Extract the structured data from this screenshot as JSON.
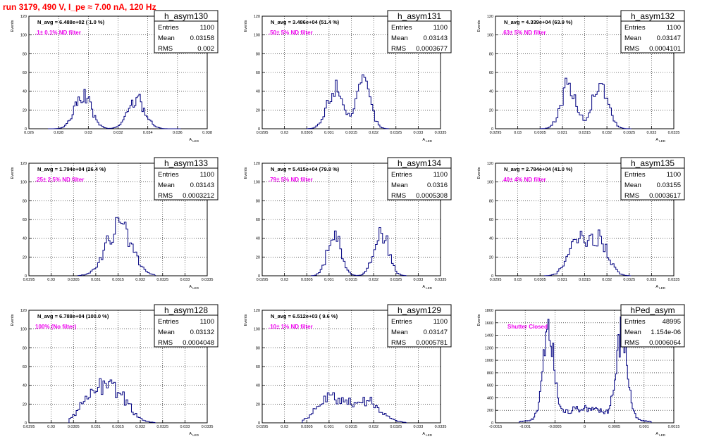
{
  "header": {
    "run_label": "run 3179,   490 V, I_pe ≈ 7.00 nA, 120 Hz"
  },
  "colors": {
    "histogram": "#000080",
    "filter_label": "#ee00ee",
    "title": "#ff0000",
    "grid": "#000000"
  },
  "chart_data": [
    {
      "type": "histogram",
      "name": "h_asym130",
      "entries": "1100",
      "mean": "0.03158",
      "rms": "0.002",
      "navg": "N_avg = 6.488e+02 ( 1.0 %)",
      "filter": ".1± 0.1% ND filter",
      "ylabel": "Events",
      "xlabel": "A_LED",
      "xlim": [
        0.026,
        0.038
      ],
      "ylim": [
        0,
        120
      ],
      "xticks": [
        "0.026",
        "0.028",
        "0.03",
        "0.032",
        "0.034",
        "0.036",
        "0.038"
      ],
      "yticks": [
        "0",
        "20",
        "40",
        "60",
        "80",
        "100",
        "120"
      ],
      "dist": {
        "peaks": [
          [
            0.0296,
            0.00055,
            37
          ],
          [
            0.0332,
            0.00058,
            32
          ]
        ],
        "lo": 0.0273,
        "hi": 0.0361,
        "bin": 0.0001
      }
    },
    {
      "type": "histogram",
      "name": "h_asym131",
      "entries": "1100",
      "mean": "0.03143",
      "rms": "0.0003677",
      "navg": "N_avg = 3.486e+04 (51.4 %)",
      "filter": ".50± 5% ND filter",
      "ylabel": "Events",
      "xlabel": "A_LED",
      "xlim": [
        0.0295,
        0.0335
      ],
      "ylim": [
        0,
        120
      ],
      "xticks": [
        "0.0295",
        "0.03",
        "0.0305",
        "0.031",
        "0.0315",
        "0.032",
        "0.0325",
        "0.033",
        "0.0335"
      ],
      "yticks": [
        "0",
        "20",
        "40",
        "60",
        "80",
        "100",
        "120"
      ],
      "dist": {
        "peaks": [
          [
            0.03113,
            0.00018,
            46
          ],
          [
            0.03176,
            0.00015,
            50
          ]
        ],
        "lo": 0.0305,
        "hi": 0.0323,
        "bin": 4e-05
      }
    },
    {
      "type": "histogram",
      "name": "h_asym132",
      "entries": "1100",
      "mean": "0.03147",
      "rms": "0.0004101",
      "navg": "N_avg = 4.339e+04 (63.9 %)",
      "filter": ".63± 5% ND filter",
      "ylabel": "Events",
      "xlabel": "A_LED",
      "xlim": [
        0.0295,
        0.0335
      ],
      "ylim": [
        0,
        120
      ],
      "xticks": [
        "0.0295",
        "0.03",
        "0.0305",
        "0.031",
        "0.0315",
        "0.032",
        "0.0325",
        "0.033",
        "0.0335"
      ],
      "yticks": [
        "0",
        "20",
        "40",
        "60",
        "80",
        "100",
        "120"
      ],
      "dist": {
        "peaks": [
          [
            0.03112,
            0.00017,
            47
          ],
          [
            0.03183,
            0.00017,
            50
          ]
        ],
        "lo": 0.0305,
        "hi": 0.0325,
        "bin": 4e-05
      }
    },
    {
      "type": "histogram",
      "name": "h_asym133",
      "entries": "1100",
      "mean": "0.03143",
      "rms": "0.0003212",
      "navg": "N_avg = 1.794e+04 (26.4 %)",
      "filter": ".25± 2.5% ND filter",
      "ylabel": "Events",
      "xlabel": "A_LED",
      "xlim": [
        0.0295,
        0.0335
      ],
      "ylim": [
        0,
        120
      ],
      "xticks": [
        "0.0295",
        "0.03",
        "0.0305",
        "0.031",
        "0.0315",
        "0.032",
        "0.0325",
        "0.033",
        "0.0335"
      ],
      "yticks": [
        "0",
        "20",
        "40",
        "60",
        "80",
        "100",
        "120"
      ],
      "dist": {
        "peaks": [
          [
            0.0315,
            0.00028,
            55
          ]
        ],
        "lo": 0.0306,
        "hi": 0.0323,
        "bin": 4e-05
      }
    },
    {
      "type": "histogram",
      "name": "h_asym134",
      "entries": "1100",
      "mean": "0.0316",
      "rms": "0.0005308",
      "navg": "N_avg = 5.415e+04 (79.8 %)",
      "filter": ".79± 5% ND filter",
      "ylabel": "Events",
      "xlabel": "A_LED",
      "xlim": [
        0.0295,
        0.0335
      ],
      "ylim": [
        0,
        120
      ],
      "xticks": [
        "0.0295",
        "0.03",
        "0.0305",
        "0.031",
        "0.0315",
        "0.032",
        "0.0325",
        "0.033",
        "0.0335"
      ],
      "yticks": [
        "0",
        "20",
        "40",
        "60",
        "80",
        "100",
        "120"
      ],
      "dist": {
        "peaks": [
          [
            0.0311,
            0.00015,
            47
          ],
          [
            0.03215,
            0.00016,
            50
          ]
        ],
        "lo": 0.0306,
        "hi": 0.0327,
        "bin": 4e-05
      }
    },
    {
      "type": "histogram",
      "name": "h_asym135",
      "entries": "1100",
      "mean": "0.03155",
      "rms": "0.0003617",
      "navg": "N_avg = 2.784e+04 (41.0 %)",
      "filter": ".40± 4% ND filter",
      "ylabel": "Events",
      "xlabel": "A_LED",
      "xlim": [
        0.0295,
        0.0335
      ],
      "ylim": [
        0,
        120
      ],
      "xticks": [
        "0.0295",
        "0.03",
        "0.0305",
        "0.031",
        "0.0315",
        "0.032",
        "0.0325",
        "0.033",
        "0.0335"
      ],
      "yticks": [
        "0",
        "20",
        "40",
        "60",
        "80",
        "100",
        "120"
      ],
      "dist": {
        "peaks": [
          [
            0.0313,
            0.0002,
            38
          ],
          [
            0.0318,
            0.0002,
            42
          ]
        ],
        "lo": 0.0306,
        "hi": 0.0325,
        "bin": 4e-05
      }
    },
    {
      "type": "histogram",
      "name": "h_asym128",
      "entries": "1100",
      "mean": "0.03132",
      "rms": "0.0004048",
      "navg": "N_avg = 6.788e+04 (100.0 %)",
      "filter": "100% (No filter)",
      "ylabel": "Events",
      "xlabel": "A_LED",
      "xlim": [
        0.0295,
        0.0335
      ],
      "ylim": [
        0,
        120
      ],
      "xticks": [
        "0.0295",
        "0.03",
        "0.0305",
        "0.031",
        "0.0315",
        "0.032",
        "0.0325",
        "0.033",
        "0.0335"
      ],
      "yticks": [
        "0",
        "20",
        "40",
        "60",
        "80",
        "100",
        "120"
      ],
      "dist": {
        "peaks": [
          [
            0.0309,
            0.00025,
            28
          ],
          [
            0.0314,
            0.0003,
            34
          ]
        ],
        "lo": 0.0304,
        "hi": 0.0323,
        "bin": 4e-05
      }
    },
    {
      "type": "histogram",
      "name": "h_asym129",
      "entries": "1100",
      "mean": "0.03147",
      "rms": "0.0005781",
      "navg": "N_avg = 6.512e+03 ( 9.6 %)",
      "filter": ".10± 1% ND filter",
      "ylabel": "Events",
      "xlabel": "A_LED",
      "xlim": [
        0.0295,
        0.0335
      ],
      "ylim": [
        0,
        120
      ],
      "xticks": [
        "0.0295",
        "0.03",
        "0.0305",
        "0.031",
        "0.0315",
        "0.032",
        "0.0325",
        "0.033",
        "0.0335"
      ],
      "yticks": [
        "0",
        "20",
        "40",
        "60",
        "80",
        "100",
        "120"
      ],
      "dist": {
        "peaks": [
          [
            0.031,
            0.0003,
            26
          ],
          [
            0.0318,
            0.00032,
            24
          ]
        ],
        "lo": 0.0304,
        "hi": 0.0327,
        "bin": 4e-05
      }
    },
    {
      "type": "histogram",
      "name": "hPed_asym",
      "entries": "48995",
      "mean": "1.154e-06",
      "rms": "0.0006064",
      "navg": "",
      "filter": "Shutter Closed",
      "ylabel": "Events",
      "xlabel": "A_LED",
      "xlim": [
        -0.0015,
        0.0015
      ],
      "ylim": [
        0,
        1800
      ],
      "xticks": [
        "-0.0015",
        "-0.001",
        "-0.0005",
        "0",
        "0.0005",
        "0.001",
        "0.0015"
      ],
      "yticks": [
        "0",
        "200",
        "400",
        "600",
        "800",
        "1000",
        "1200",
        "1400",
        "1600",
        "1800"
      ],
      "dist": {
        "peaks": [
          [
            -0.00062,
            9e-05,
            1450
          ],
          [
            0.00062,
            9e-05,
            1450
          ]
        ],
        "floor": 230,
        "floorW": 0.0005,
        "lo": -0.0011,
        "hi": 0.0011,
        "bin": 2e-05
      }
    }
  ]
}
